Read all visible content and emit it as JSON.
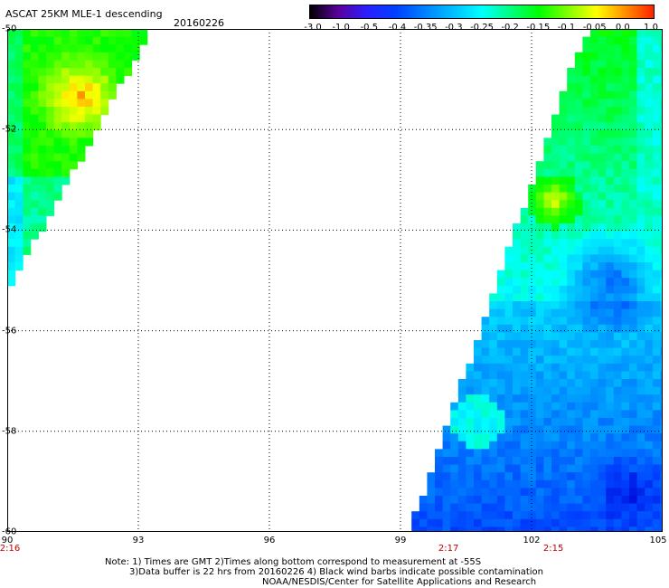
{
  "header": {
    "title": "ASCAT 25KM MLE-1 descending",
    "date": "20160226"
  },
  "colorbar": {
    "labels": [
      "-3.0",
      "-1.0",
      "-0.5",
      "-0.4",
      "-0.35",
      "-0.3",
      "-0.25",
      "-0.2",
      "-0.15",
      "-0.1",
      "-0.05",
      "0.0",
      "1.0"
    ],
    "colors": [
      "#000000",
      "#5a00a0",
      "#2a20ff",
      "#0040ff",
      "#0080ff",
      "#00c0ff",
      "#00ffff",
      "#00ff80",
      "#00ff00",
      "#80ff00",
      "#ffff00",
      "#ff9000",
      "#ff2000"
    ]
  },
  "axes": {
    "y_labels": [
      "-50",
      "-52",
      "-54",
      "-56",
      "-58",
      "-60"
    ],
    "x_labels": [
      "90",
      "93",
      "96",
      "99",
      "102",
      "105"
    ],
    "x_range": [
      90,
      105
    ],
    "y_range": [
      -50,
      -60
    ],
    "time_labels": [
      {
        "lon": 90,
        "text": "2:16"
      },
      {
        "lon": 100.1,
        "text": "2:17"
      },
      {
        "lon": 102.5,
        "text": "2:15"
      }
    ]
  },
  "notes": {
    "line1": "Note: 1) Times are GMT 2)Times along bottom correspond to measurement at -55S",
    "line2": "3)Data buffer is 22 hrs from 20160226 4) Black wind barbs indicate possible contamination",
    "line3": "NOAA/NESDIS/Center for Satellite Applications and Research"
  }
}
